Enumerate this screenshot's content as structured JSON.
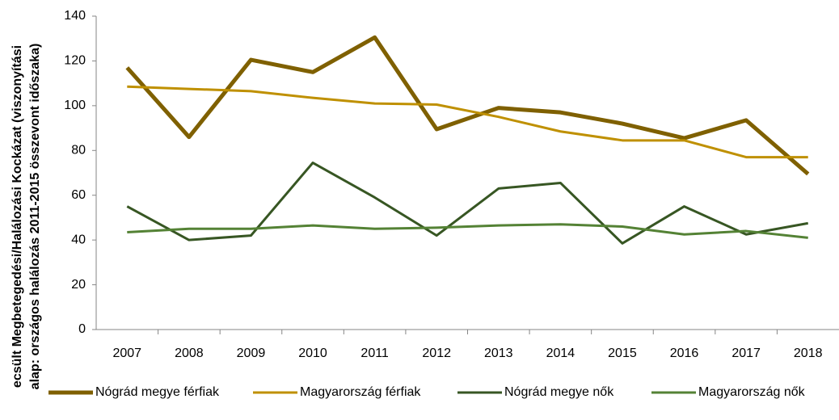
{
  "chart_data": {
    "type": "line",
    "y_label": [
      "ecsült Megbetegedési/Halálozási Kockázat (viszonyítási",
      "alap: országos halálozás 2011-2015 összevont időszaka)"
    ],
    "categories": [
      "2007",
      "2008",
      "2009",
      "2010",
      "2011",
      "2012",
      "2013",
      "2014",
      "2015",
      "2016",
      "2017",
      "2018"
    ],
    "series": [
      {
        "name": "Nógrád megye férfiak",
        "color": "#7f6000",
        "values": [
          117,
          86,
          120.5,
          115,
          130.5,
          89.5,
          99,
          97,
          92,
          85.5,
          93.5,
          69.5
        ]
      },
      {
        "name": "Magyarország férfiak",
        "color": "#bf9000",
        "values": [
          108.5,
          107.5,
          106.5,
          103.5,
          101,
          100.5,
          95,
          88.5,
          84.5,
          84.5,
          77,
          77
        ]
      },
      {
        "name": "Nógrád megye nők",
        "color": "#375623",
        "values": [
          55,
          40,
          42,
          74.5,
          59,
          42,
          63,
          65.5,
          38.5,
          55,
          42.5,
          47.5
        ]
      },
      {
        "name": "Magyarország nők",
        "color": "#548235",
        "values": [
          43.5,
          45,
          45,
          46.5,
          45,
          45.5,
          46.5,
          47,
          46,
          42.5,
          44,
          41
        ]
      }
    ],
    "ylim": [
      0,
      140
    ],
    "yticks": [
      0,
      20,
      40,
      60,
      80,
      100,
      120,
      140
    ],
    "grid": false,
    "legend": "bottom"
  }
}
